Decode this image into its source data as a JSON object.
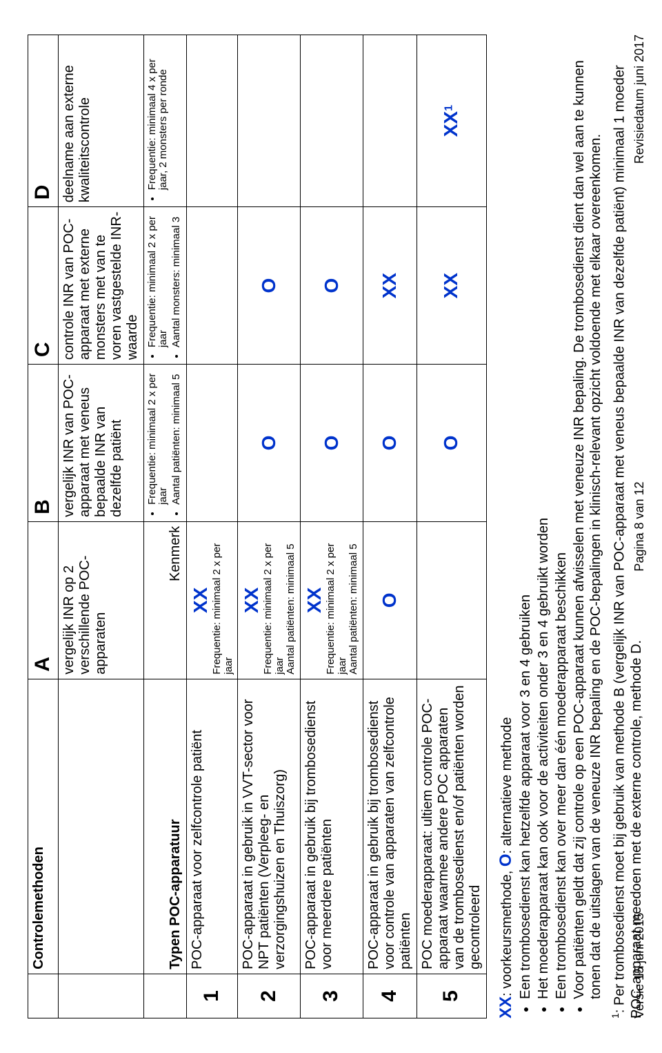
{
  "header": {
    "title": "Controlemethoden",
    "col_a_letter": "A",
    "col_b_letter": "B",
    "col_c_letter": "C",
    "col_d_letter": "D",
    "col_a_desc": "vergelijk INR op 2 verschillende POC-apparaten",
    "col_b_desc": "vergelijk INR van POC-apparaat met veneus bepaalde INR van dezelfde patiënt",
    "col_c_desc": "controle INR van POC-apparaat met externe monsters met van te voren vastgestelde INR-waarde",
    "col_d_desc": "deelname aan externe kwaliteitscontrole",
    "types_label": "Typen POC-apparatuur",
    "kenmerk": "Kenmerk",
    "b_bullets": [
      "Frequentie: minimaal 2 x per jaar",
      "Aantal patiënten: minimaal 5"
    ],
    "c_bullets": [
      "Frequentie: minimaal 2 x per jaar",
      "Aantal monsters: minimaal 3"
    ],
    "d_bullets": [
      "Frequentie: minimaal 4 x per jaar, 2 monsters per ronde"
    ]
  },
  "rows": {
    "r1": {
      "num": "1",
      "label": "POC-apparaat voor zelfcontrole patiënt",
      "a_mark": "XX",
      "a_note": "Frequentie: minimaal 2 x per jaar"
    },
    "r2": {
      "num": "2",
      "label": "POC-apparaat in gebruik in VVT-sector voor NPT patiënten (Verpleeg- en verzorgingshuizen en Thuiszorg)",
      "a_mark": "XX",
      "a_note1": "Frequentie: minimaal 2 x per jaar",
      "a_note2": "Aantal patiënten: minimaal 5",
      "b_mark": "O",
      "c_mark": "O"
    },
    "r3": {
      "num": "3",
      "label": "POC-apparaat in gebruik bij trombosedienst voor meerdere patiënten",
      "a_mark": "XX",
      "a_note1": "Frequentie: minimaal 2 x per jaar",
      "a_note2": "Aantal patiënten: minimaal 5",
      "b_mark": "O",
      "c_mark": "O"
    },
    "r4": {
      "num": "4",
      "label": "POC-apparaat in gebruik bij trombosedienst voor controle van apparaten van zelfcontrole patiënten",
      "a_mark": "O",
      "b_mark": "O",
      "c_mark": "XX"
    },
    "r5": {
      "num": "5",
      "label": "POC moederapparaat: ultiem controle POC-apparaat waarmee andere POC apparaten van de trombosedienst en/of patiënten worden gecontroleerd",
      "b_mark": "O",
      "c_mark": "XX",
      "d_mark": "XX",
      "d_sup": "1"
    }
  },
  "notes": {
    "legend_xx": "XX",
    "legend_xx_text": ": voorkeursmethode, ",
    "legend_o": "O",
    "legend_o_text": ": alternatieve methode",
    "b1": "Een trombosedienst kan hetzelfde apparaat voor 3 en 4 gebruiken",
    "b2": "Het moederapparaat kan ook voor de activiteiten onder 3 en 4 gebruikt worden",
    "b3": "Een trombosedienst kan over meer dan één moederapparaat beschikken",
    "b4": "Voor patiënten geldt dat zij controle op een POC-apparaat kunnen afwisselen met veneuze INR bepaling. De trombosedienst dient dan wel aan te kunnen tonen dat de uitslagen van de veneuze INR bepaling en de POC-bepalingen in klinisch-relevant opzicht voldoende met elkaar overeenkomen.",
    "footnote_sup": "1",
    "footnote": ": Per trombosedienst moet bij gebruik van methode B (vergelijk INR van POC-apparaat met veneus bepaalde INR van dezelfde patiënt) minimaal 1 moeder POC-apparaat meedoen met de externe controle, methode D."
  },
  "footer": {
    "left": "Versie 15 juni 2015",
    "center": "Pagina 8 van 12",
    "right": "Revisiedatum juni 2017"
  },
  "colors": {
    "mark_color": "#0033cc",
    "border_color": "#000000",
    "text_color": "#000000"
  }
}
